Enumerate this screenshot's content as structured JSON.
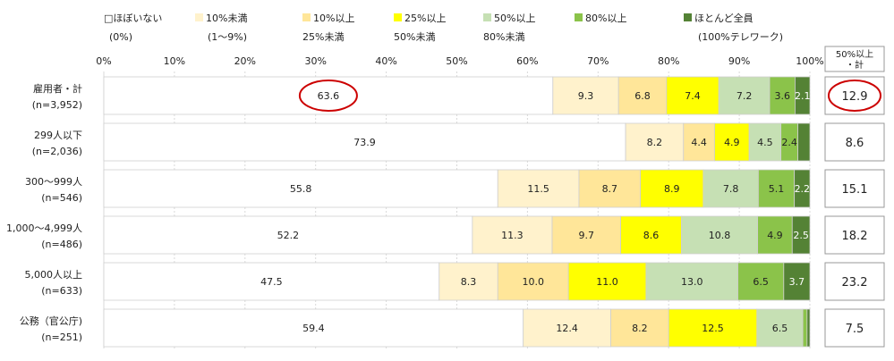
{
  "chart_data": {
    "type": "bar",
    "orientation": "horizontal",
    "stacked": true,
    "xlim": [
      0,
      100
    ],
    "x_tick_labels": [
      "0%",
      "10%",
      "20%",
      "30%",
      "40%",
      "50%",
      "60%",
      "70%",
      "80%",
      "90%",
      "100%"
    ],
    "categories": [
      [
        "雇用者・計",
        "(n=3,952)"
      ],
      [
        "299人以下",
        "(n=2,036)"
      ],
      [
        "300～999人",
        "(n=546)"
      ],
      [
        "1,000～4,999人",
        "(n=486)"
      ],
      [
        "5,000人以上",
        "(n=633)"
      ],
      [
        "公務（官公庁)",
        "(n=251)"
      ]
    ],
    "series": [
      {
        "name": "ほぼいない",
        "name_line2": "(0%)",
        "legend_marker": "□",
        "color": "#ffffff",
        "values": [
          63.6,
          73.9,
          55.8,
          52.2,
          47.5,
          59.4
        ],
        "labels": [
          "63.6",
          "73.9",
          "55.8",
          "52.2",
          "47.5",
          "59.4"
        ]
      },
      {
        "name": "10%未満",
        "name_line2": "(1～9%)",
        "color": "#fff2cc",
        "values": [
          9.3,
          8.2,
          11.5,
          11.3,
          8.3,
          12.4
        ],
        "labels": [
          "9.3",
          "8.2",
          "11.5",
          "11.3",
          "8.3",
          "12.4"
        ]
      },
      {
        "name": "10%以上",
        "name_line2": "25%未満",
        "color": "#ffe699",
        "values": [
          6.8,
          4.4,
          8.7,
          9.7,
          10.0,
          8.2
        ],
        "labels": [
          "6.8",
          "4.4",
          "8.7",
          "9.7",
          "10.0",
          "8.2"
        ]
      },
      {
        "name": "25%以上",
        "name_line2": "50%未満",
        "color": "#ffff00",
        "values": [
          7.4,
          4.9,
          8.9,
          8.6,
          11.0,
          12.5
        ],
        "labels": [
          "7.4",
          "4.9",
          "8.9",
          "8.6",
          "11.0",
          "12.5"
        ]
      },
      {
        "name": "50%以上",
        "name_line2": "80%未満",
        "color": "#c6e0b4",
        "values": [
          7.2,
          4.5,
          7.8,
          10.8,
          13.0,
          6.5
        ],
        "labels": [
          "7.2",
          "4.5",
          "7.8",
          "10.8",
          "13.0",
          "6.5"
        ]
      },
      {
        "name": "80%以上",
        "name_line2": "",
        "color": "#8bc34a",
        "values": [
          3.6,
          2.4,
          5.1,
          4.9,
          6.5,
          0.6
        ],
        "labels": [
          "3.6",
          "2.4",
          "5.1",
          "4.9",
          "6.5",
          ""
        ]
      },
      {
        "name": "ほとんど全員",
        "name_line2": "(100%テレワーク)",
        "color": "#548235",
        "values": [
          2.1,
          1.7,
          2.2,
          2.5,
          3.7,
          0.4
        ],
        "labels": [
          "2.1",
          "",
          "2.2",
          "2.5",
          "3.7",
          ""
        ]
      }
    ],
    "total_column": {
      "header": [
        "50%以上",
        "・計"
      ],
      "values": [
        "12.9",
        "8.6",
        "15.1",
        "18.2",
        "23.2",
        "7.5"
      ]
    },
    "highlighted": [
      "63.6",
      "12.9"
    ],
    "highlight_color": "#cc0000",
    "grid": true,
    "legend_position": "top"
  }
}
